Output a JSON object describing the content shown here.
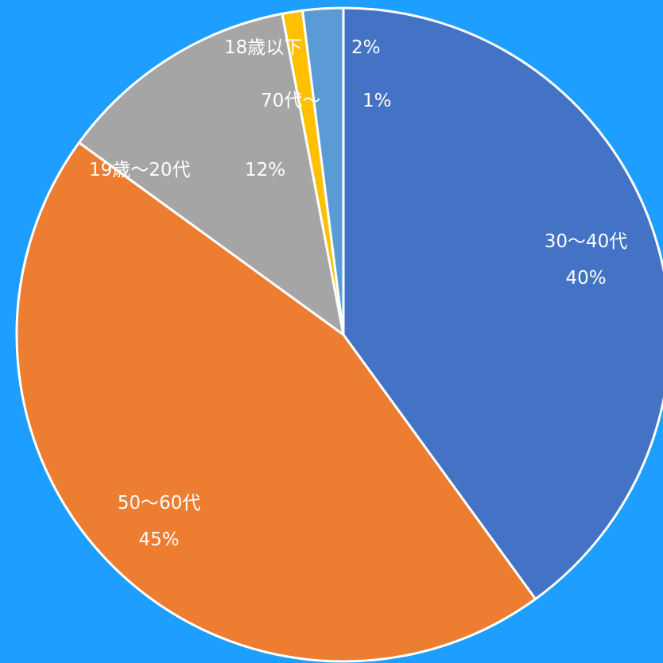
{
  "chart_data": {
    "type": "pie",
    "title": "",
    "start_angle_deg": 0,
    "direction": "clockwise",
    "legend": "none",
    "slices": [
      {
        "label": "30〜40代",
        "value": 40,
        "value_label": "40%",
        "color": "#4472C4"
      },
      {
        "label": "50〜60代",
        "value": 45,
        "value_label": "45%",
        "color": "#ED7D31"
      },
      {
        "label": "19歳〜20代",
        "value": 12,
        "value_label": "12%",
        "color": "#A5A5A5"
      },
      {
        "label": "70代〜",
        "value": 1,
        "value_label": "1%",
        "color": "#FFC000"
      },
      {
        "label": "18歳以下",
        "value": 2,
        "value_label": "2%",
        "color": "#5B9BD5"
      }
    ]
  },
  "colors": {
    "background": "#1E9FFF",
    "slice_border": "#FFFFFF",
    "label_text": "#FFFFFF"
  }
}
